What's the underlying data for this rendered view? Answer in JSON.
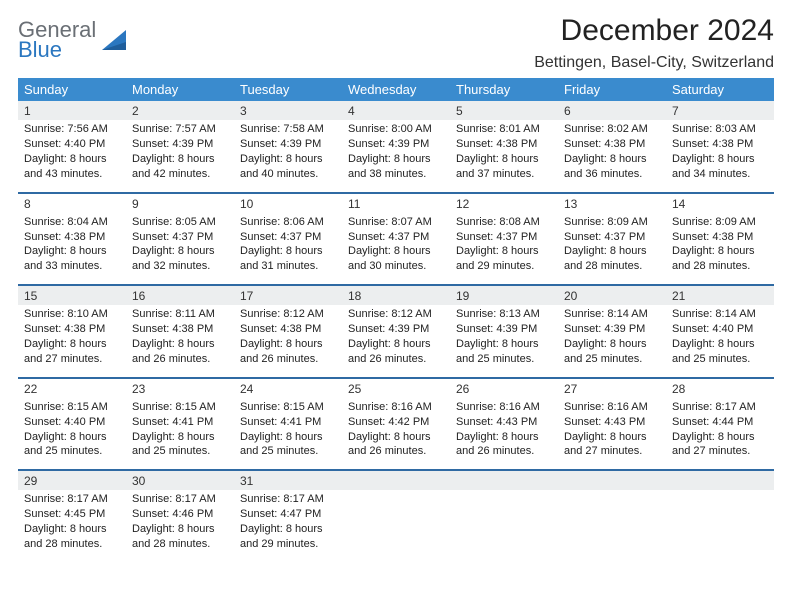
{
  "brand": {
    "part1": "General",
    "part2": "Blue"
  },
  "title": "December 2024",
  "location": "Bettingen, Basel-City, Switzerland",
  "colors": {
    "header_bg": "#3a8bce",
    "header_text": "#ffffff",
    "separator": "#2f6aa3",
    "daynum_bg": "#eceeef",
    "page_bg": "#ffffff",
    "brand_gray": "#6a6f75",
    "brand_blue": "#2b77c0"
  },
  "weekdays": [
    "Sunday",
    "Monday",
    "Tuesday",
    "Wednesday",
    "Thursday",
    "Friday",
    "Saturday"
  ],
  "weeks": [
    {
      "shaded": true,
      "days": [
        {
          "num": "1",
          "sunrise": "Sunrise: 7:56 AM",
          "sunset": "Sunset: 4:40 PM",
          "daylight": "Daylight: 8 hours and 43 minutes."
        },
        {
          "num": "2",
          "sunrise": "Sunrise: 7:57 AM",
          "sunset": "Sunset: 4:39 PM",
          "daylight": "Daylight: 8 hours and 42 minutes."
        },
        {
          "num": "3",
          "sunrise": "Sunrise: 7:58 AM",
          "sunset": "Sunset: 4:39 PM",
          "daylight": "Daylight: 8 hours and 40 minutes."
        },
        {
          "num": "4",
          "sunrise": "Sunrise: 8:00 AM",
          "sunset": "Sunset: 4:39 PM",
          "daylight": "Daylight: 8 hours and 38 minutes."
        },
        {
          "num": "5",
          "sunrise": "Sunrise: 8:01 AM",
          "sunset": "Sunset: 4:38 PM",
          "daylight": "Daylight: 8 hours and 37 minutes."
        },
        {
          "num": "6",
          "sunrise": "Sunrise: 8:02 AM",
          "sunset": "Sunset: 4:38 PM",
          "daylight": "Daylight: 8 hours and 36 minutes."
        },
        {
          "num": "7",
          "sunrise": "Sunrise: 8:03 AM",
          "sunset": "Sunset: 4:38 PM",
          "daylight": "Daylight: 8 hours and 34 minutes."
        }
      ]
    },
    {
      "shaded": false,
      "days": [
        {
          "num": "8",
          "sunrise": "Sunrise: 8:04 AM",
          "sunset": "Sunset: 4:38 PM",
          "daylight": "Daylight: 8 hours and 33 minutes."
        },
        {
          "num": "9",
          "sunrise": "Sunrise: 8:05 AM",
          "sunset": "Sunset: 4:37 PM",
          "daylight": "Daylight: 8 hours and 32 minutes."
        },
        {
          "num": "10",
          "sunrise": "Sunrise: 8:06 AM",
          "sunset": "Sunset: 4:37 PM",
          "daylight": "Daylight: 8 hours and 31 minutes."
        },
        {
          "num": "11",
          "sunrise": "Sunrise: 8:07 AM",
          "sunset": "Sunset: 4:37 PM",
          "daylight": "Daylight: 8 hours and 30 minutes."
        },
        {
          "num": "12",
          "sunrise": "Sunrise: 8:08 AM",
          "sunset": "Sunset: 4:37 PM",
          "daylight": "Daylight: 8 hours and 29 minutes."
        },
        {
          "num": "13",
          "sunrise": "Sunrise: 8:09 AM",
          "sunset": "Sunset: 4:37 PM",
          "daylight": "Daylight: 8 hours and 28 minutes."
        },
        {
          "num": "14",
          "sunrise": "Sunrise: 8:09 AM",
          "sunset": "Sunset: 4:38 PM",
          "daylight": "Daylight: 8 hours and 28 minutes."
        }
      ]
    },
    {
      "shaded": true,
      "days": [
        {
          "num": "15",
          "sunrise": "Sunrise: 8:10 AM",
          "sunset": "Sunset: 4:38 PM",
          "daylight": "Daylight: 8 hours and 27 minutes."
        },
        {
          "num": "16",
          "sunrise": "Sunrise: 8:11 AM",
          "sunset": "Sunset: 4:38 PM",
          "daylight": "Daylight: 8 hours and 26 minutes."
        },
        {
          "num": "17",
          "sunrise": "Sunrise: 8:12 AM",
          "sunset": "Sunset: 4:38 PM",
          "daylight": "Daylight: 8 hours and 26 minutes."
        },
        {
          "num": "18",
          "sunrise": "Sunrise: 8:12 AM",
          "sunset": "Sunset: 4:39 PM",
          "daylight": "Daylight: 8 hours and 26 minutes."
        },
        {
          "num": "19",
          "sunrise": "Sunrise: 8:13 AM",
          "sunset": "Sunset: 4:39 PM",
          "daylight": "Daylight: 8 hours and 25 minutes."
        },
        {
          "num": "20",
          "sunrise": "Sunrise: 8:14 AM",
          "sunset": "Sunset: 4:39 PM",
          "daylight": "Daylight: 8 hours and 25 minutes."
        },
        {
          "num": "21",
          "sunrise": "Sunrise: 8:14 AM",
          "sunset": "Sunset: 4:40 PM",
          "daylight": "Daylight: 8 hours and 25 minutes."
        }
      ]
    },
    {
      "shaded": false,
      "days": [
        {
          "num": "22",
          "sunrise": "Sunrise: 8:15 AM",
          "sunset": "Sunset: 4:40 PM",
          "daylight": "Daylight: 8 hours and 25 minutes."
        },
        {
          "num": "23",
          "sunrise": "Sunrise: 8:15 AM",
          "sunset": "Sunset: 4:41 PM",
          "daylight": "Daylight: 8 hours and 25 minutes."
        },
        {
          "num": "24",
          "sunrise": "Sunrise: 8:15 AM",
          "sunset": "Sunset: 4:41 PM",
          "daylight": "Daylight: 8 hours and 25 minutes."
        },
        {
          "num": "25",
          "sunrise": "Sunrise: 8:16 AM",
          "sunset": "Sunset: 4:42 PM",
          "daylight": "Daylight: 8 hours and 26 minutes."
        },
        {
          "num": "26",
          "sunrise": "Sunrise: 8:16 AM",
          "sunset": "Sunset: 4:43 PM",
          "daylight": "Daylight: 8 hours and 26 minutes."
        },
        {
          "num": "27",
          "sunrise": "Sunrise: 8:16 AM",
          "sunset": "Sunset: 4:43 PM",
          "daylight": "Daylight: 8 hours and 27 minutes."
        },
        {
          "num": "28",
          "sunrise": "Sunrise: 8:17 AM",
          "sunset": "Sunset: 4:44 PM",
          "daylight": "Daylight: 8 hours and 27 minutes."
        }
      ]
    },
    {
      "shaded": true,
      "days": [
        {
          "num": "29",
          "sunrise": "Sunrise: 8:17 AM",
          "sunset": "Sunset: 4:45 PM",
          "daylight": "Daylight: 8 hours and 28 minutes."
        },
        {
          "num": "30",
          "sunrise": "Sunrise: 8:17 AM",
          "sunset": "Sunset: 4:46 PM",
          "daylight": "Daylight: 8 hours and 28 minutes."
        },
        {
          "num": "31",
          "sunrise": "Sunrise: 8:17 AM",
          "sunset": "Sunset: 4:47 PM",
          "daylight": "Daylight: 8 hours and 29 minutes."
        },
        null,
        null,
        null,
        null
      ]
    }
  ]
}
